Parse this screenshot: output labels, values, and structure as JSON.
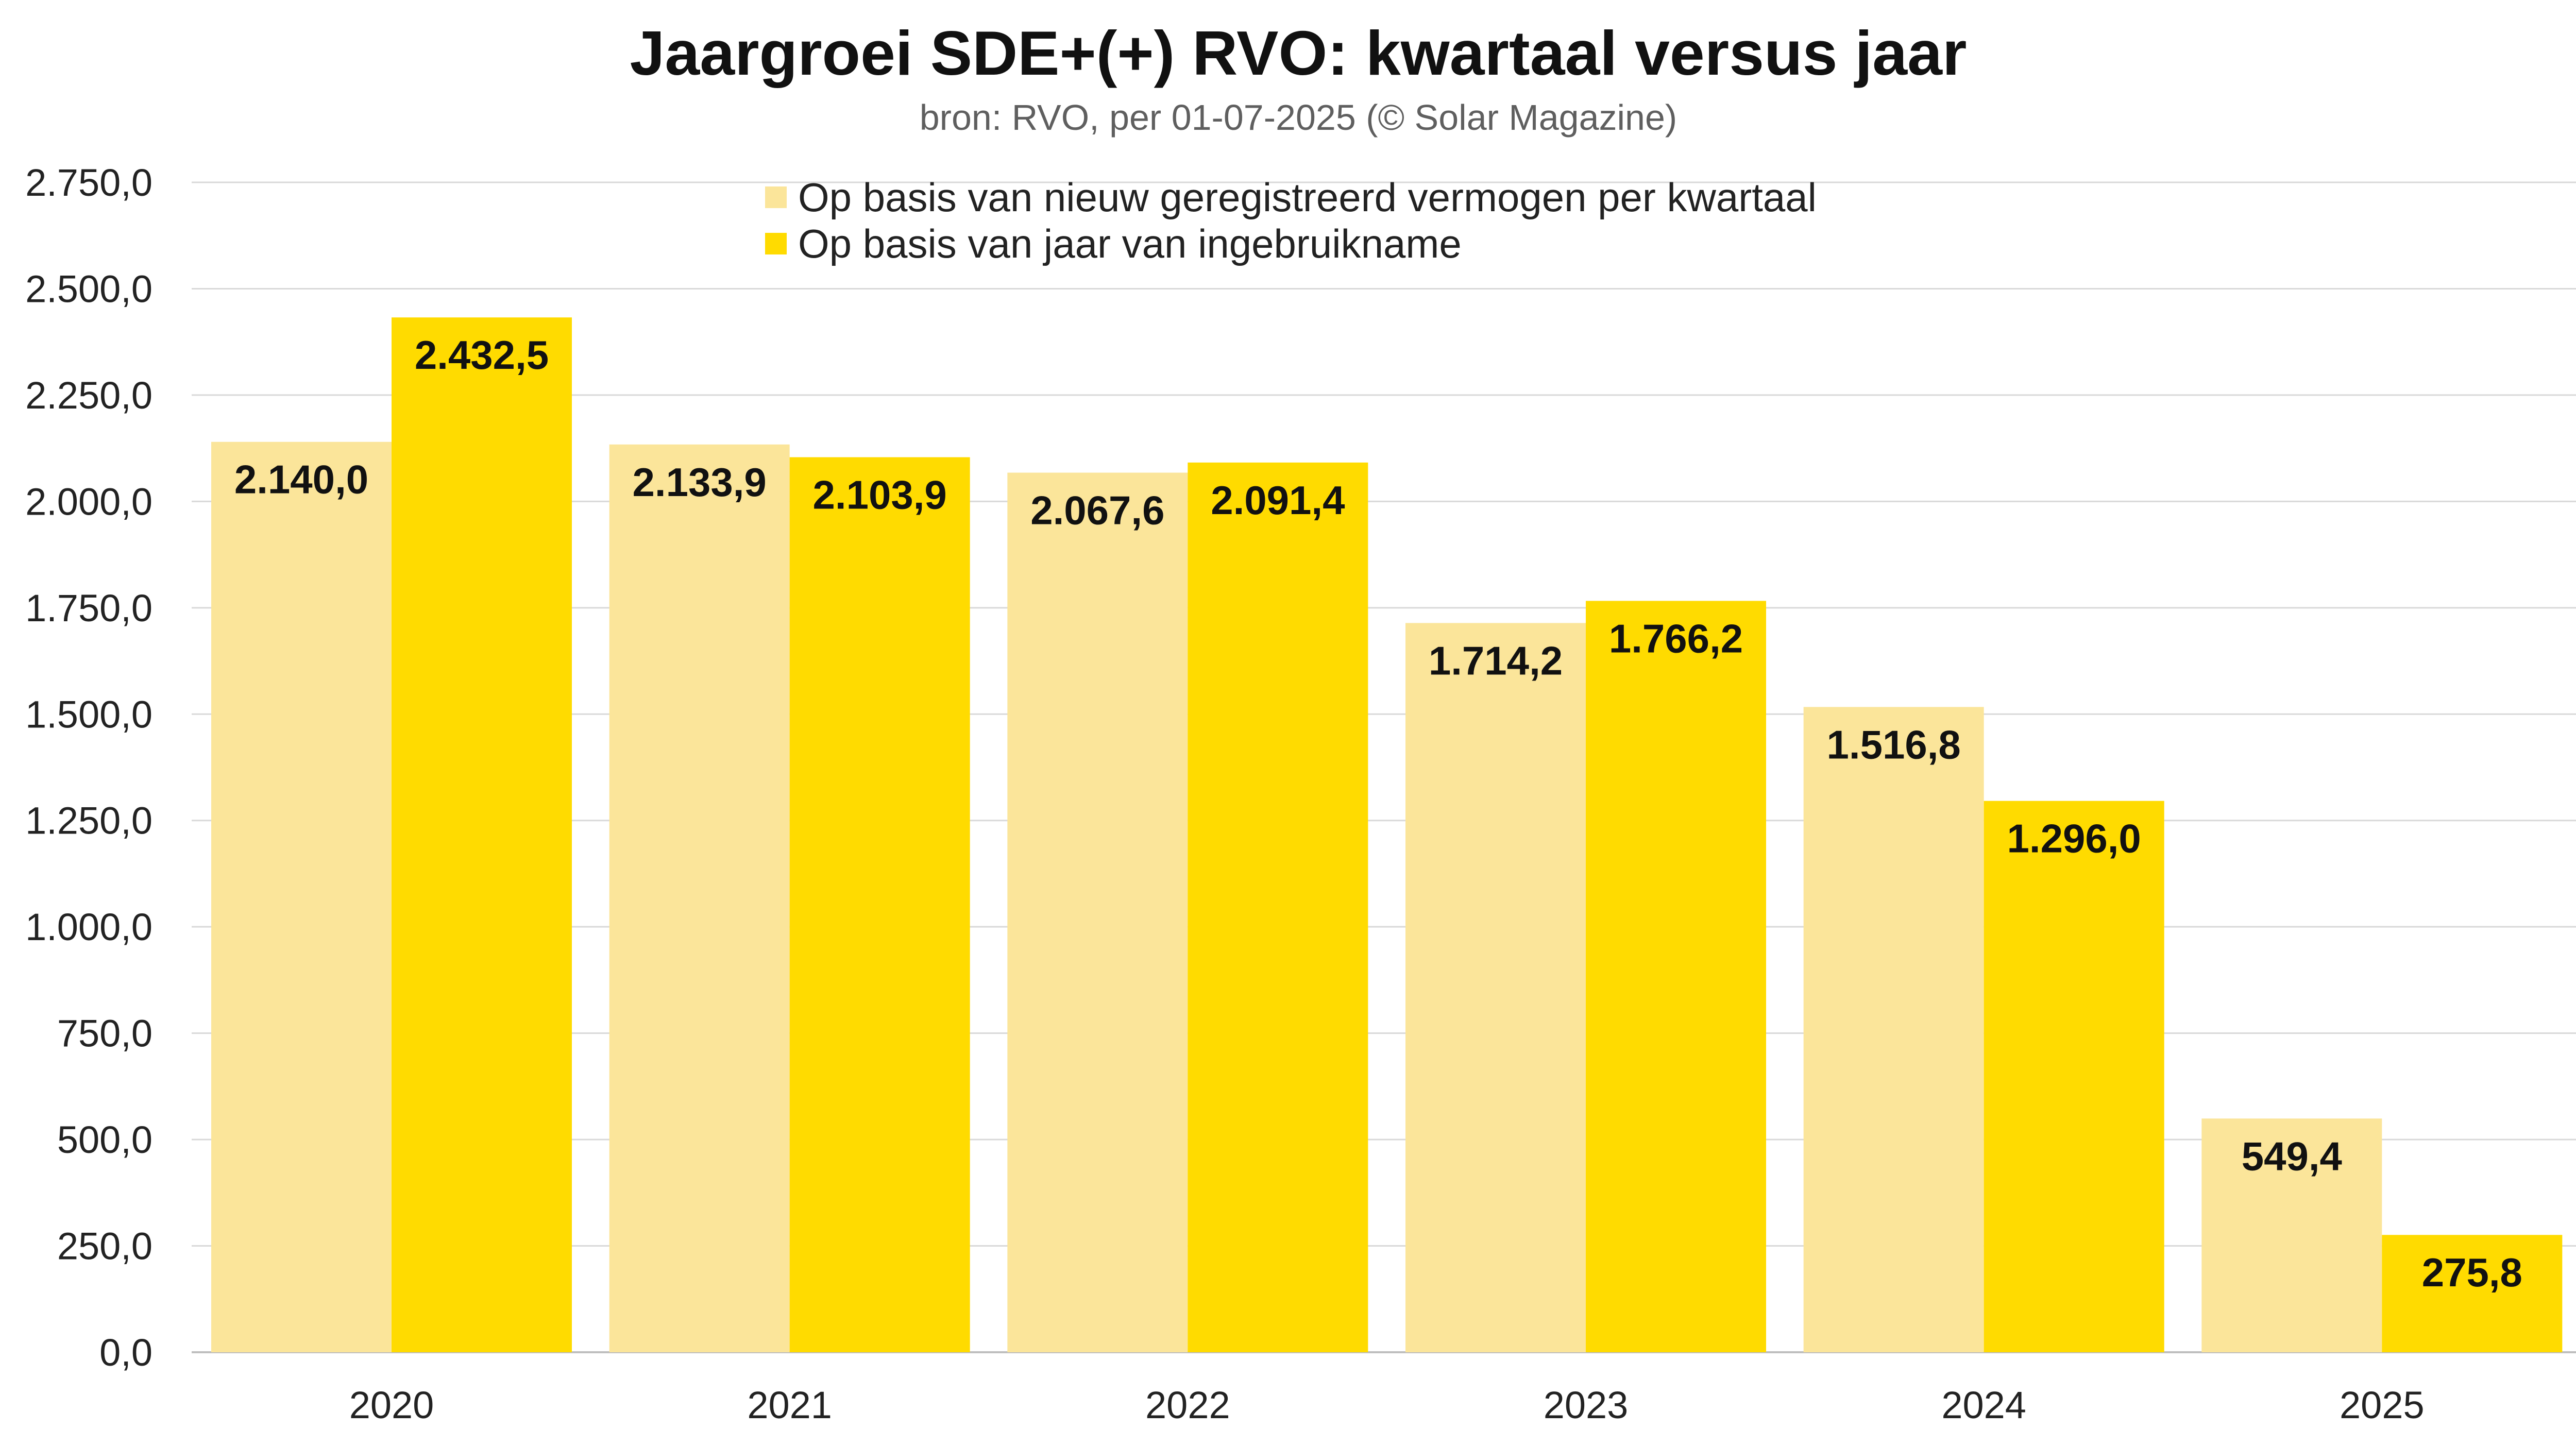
{
  "chart_data": {
    "type": "bar",
    "title": "Jaargroei SDE+(+) RVO: kwartaal versus jaar",
    "subtitle": "bron: RVO, per 01-07-2025 (© Solar Magazine)",
    "xlabel": "",
    "ylabel": "",
    "categories": [
      "2020",
      "2021",
      "2022",
      "2023",
      "2024",
      "2025"
    ],
    "series": [
      {
        "name": "Op basis van nieuw geregistreerd vermogen per kwartaal",
        "color": "#fbe59a",
        "values": [
          2140.0,
          2133.9,
          2067.6,
          1714.2,
          1516.8,
          549.4
        ],
        "labels": [
          "2.140,0",
          "2.133,9",
          "2.067,6",
          "1.714,2",
          "1.516,8",
          "549,4"
        ]
      },
      {
        "name": "Op basis van jaar van ingebruikname",
        "color": "#ffdb00",
        "values": [
          2432.5,
          2103.9,
          2091.4,
          1766.2,
          1296.0,
          275.8
        ],
        "labels": [
          "2.432,5",
          "2.103,9",
          "2.091,4",
          "1.766,2",
          "1.296,0",
          "275,8"
        ]
      }
    ],
    "ylim": [
      0,
      2750
    ],
    "yticks": [
      0,
      250,
      500,
      750,
      1000,
      1250,
      1500,
      1750,
      2000,
      2250,
      2500,
      2750
    ],
    "ytick_labels": [
      "0,0",
      "250,0",
      "500,0",
      "750,0",
      "1.000,0",
      "1.250,0",
      "1.500,0",
      "1.750,0",
      "2.000,0",
      "2.250,0",
      "2.500,0",
      "2.750,0"
    ],
    "grid": true,
    "legend_position": "top-center"
  }
}
